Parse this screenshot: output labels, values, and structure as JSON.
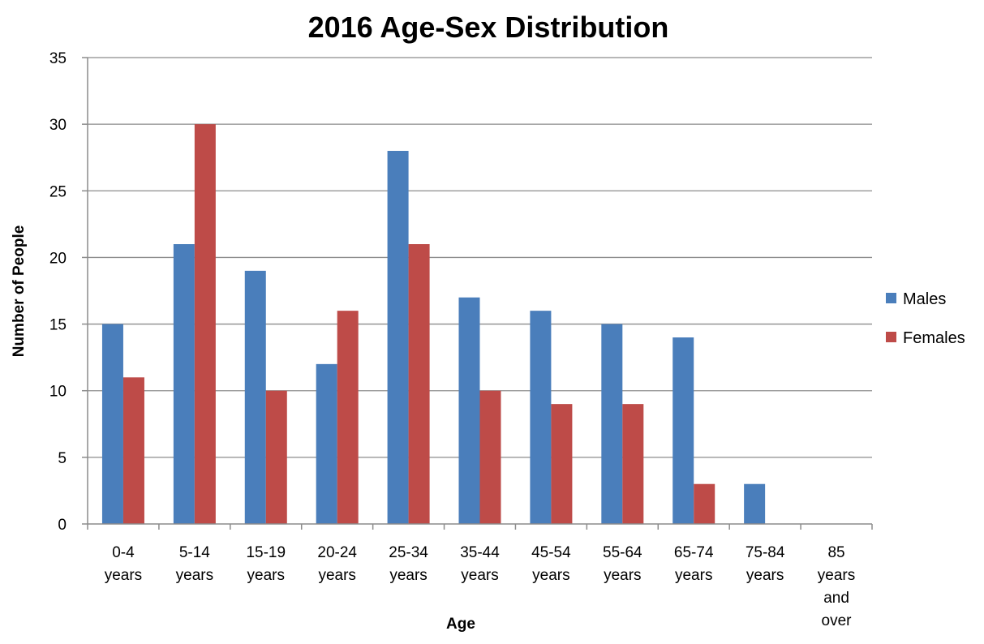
{
  "chart_data": {
    "type": "bar",
    "title": "2016 Age-Sex Distribution",
    "xlabel": "Age",
    "ylabel": "Number of People",
    "categories": [
      [
        "0-4",
        "years"
      ],
      [
        "5-14",
        "years"
      ],
      [
        "15-19",
        "years"
      ],
      [
        "20-24",
        "years"
      ],
      [
        "25-34",
        "years"
      ],
      [
        "35-44",
        "years"
      ],
      [
        "45-54",
        "years"
      ],
      [
        "55-64",
        "years"
      ],
      [
        "65-74",
        "years"
      ],
      [
        "75-84",
        "years"
      ],
      [
        "85",
        "years",
        "and",
        "over"
      ]
    ],
    "series": [
      {
        "name": "Males",
        "color": "#4a7ebb",
        "values": [
          15,
          21,
          19,
          12,
          28,
          17,
          16,
          15,
          14,
          3,
          0
        ]
      },
      {
        "name": "Females",
        "color": "#be4b48",
        "values": [
          11,
          30,
          10,
          16,
          21,
          10,
          9,
          9,
          3,
          0,
          0
        ]
      }
    ],
    "ylim": [
      0,
      35
    ],
    "yticks": [
      0,
      5,
      10,
      15,
      20,
      25,
      30,
      35
    ],
    "grid": true,
    "legend_position": "right"
  }
}
